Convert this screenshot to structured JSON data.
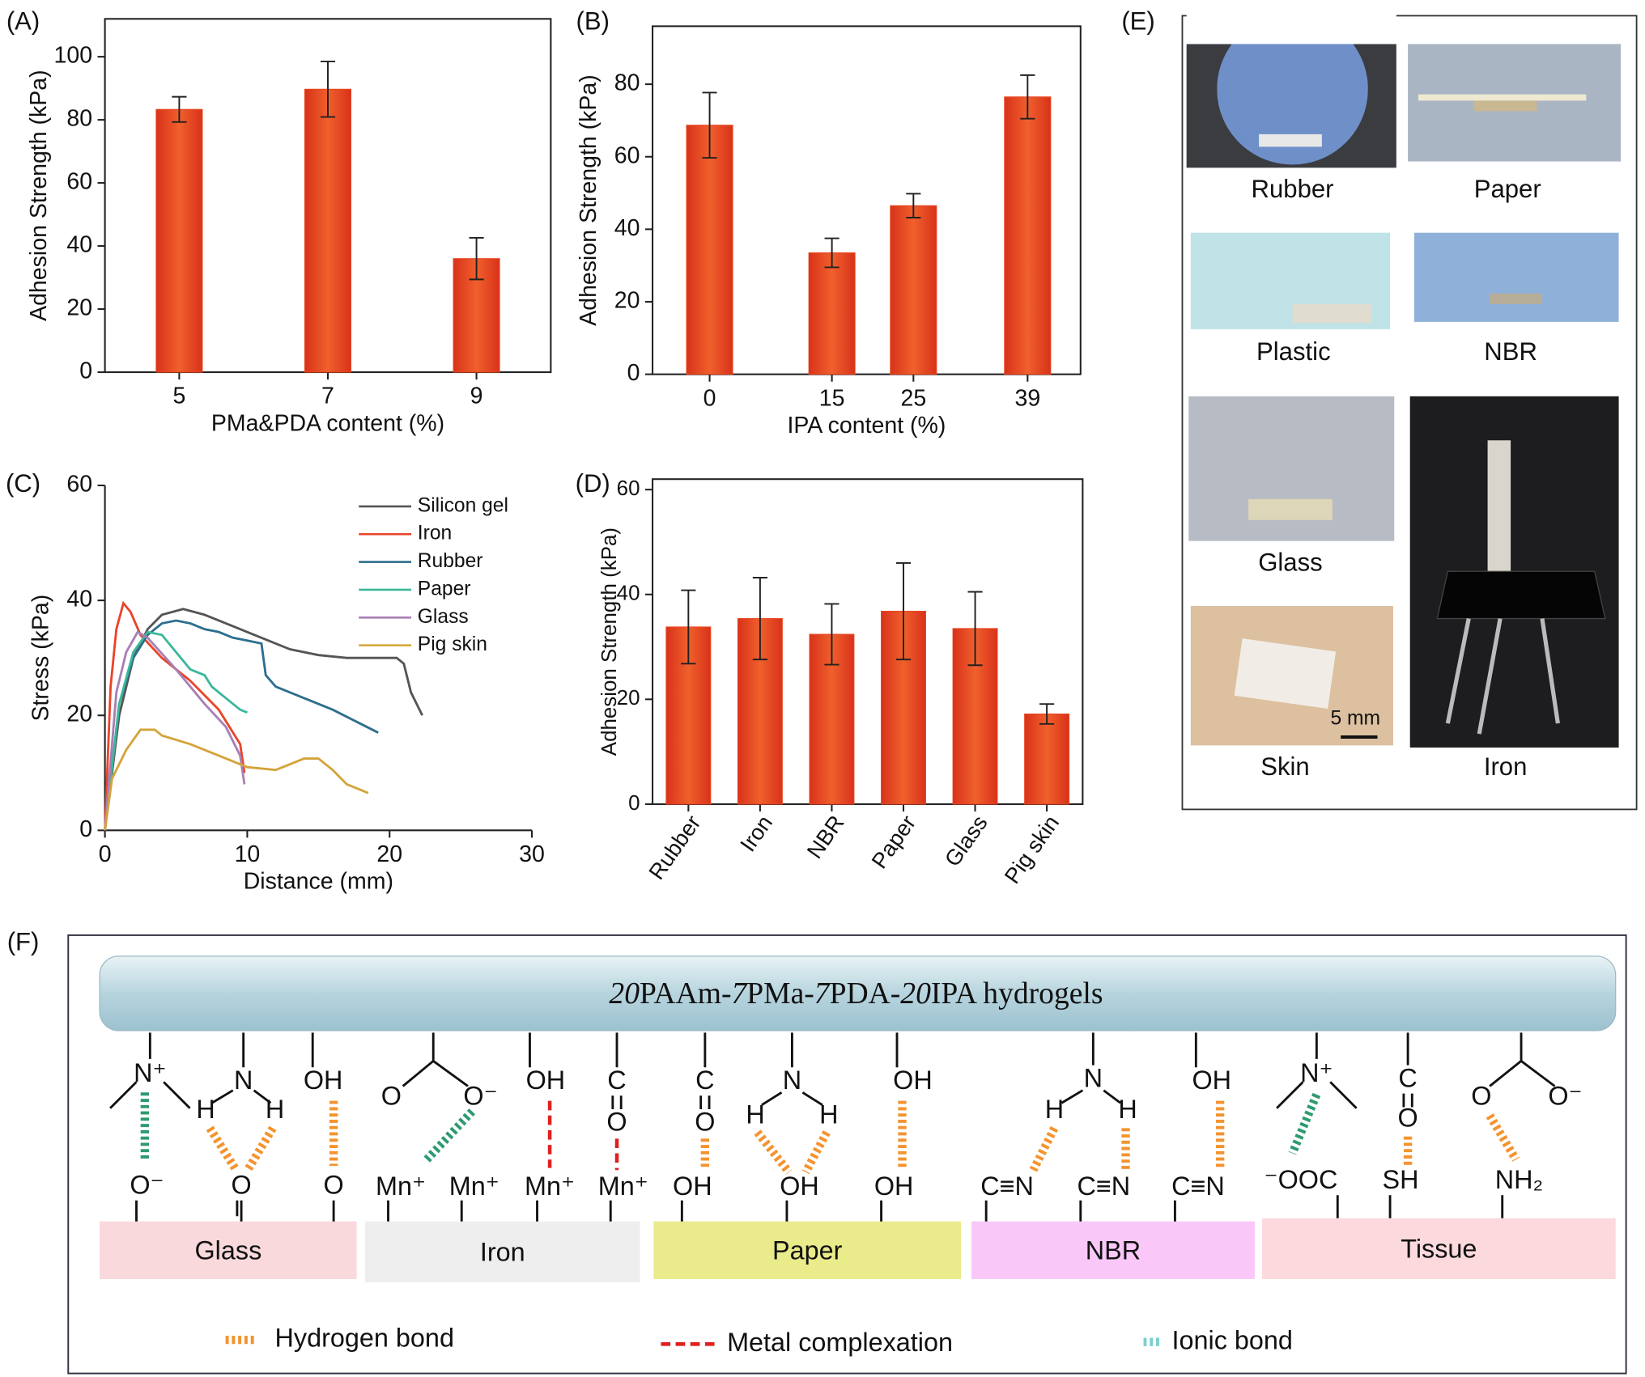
{
  "chart_data": [
    {
      "type": "bar",
      "panel_label": "(A)",
      "xlabel": "PMa&PDA content (%)",
      "ylabel": "Adhesion Strength (kPa)",
      "categories": [
        "5",
        "7",
        "9"
      ],
      "values": [
        83.3,
        89.7,
        36
      ],
      "errors": [
        4,
        8.8,
        6.6
      ],
      "color": "#e8451f",
      "ylim": [
        0,
        112
      ],
      "yticks": [
        0,
        20,
        40,
        60,
        80,
        100
      ],
      "box": true
    },
    {
      "type": "bar",
      "panel_label": "(B)",
      "xlabel": "IPA content (%)",
      "ylabel": "Adhesion Strength (kPa)",
      "x": [
        0,
        15,
        25,
        39
      ],
      "values": [
        68.7,
        33.5,
        46.5,
        76.5
      ],
      "errors": [
        9,
        4,
        3.3,
        6
      ],
      "color": "#e8451f",
      "xlim": [
        -7,
        45.5
      ],
      "xticks": [
        0,
        15,
        25,
        39
      ],
      "ylim": [
        0,
        96
      ],
      "yticks": [
        0,
        20,
        40,
        60,
        80
      ],
      "box": true
    },
    {
      "type": "line",
      "panel_label": "(C)",
      "xlabel": "Distance (mm)",
      "ylabel": "Stress (kPa)",
      "xlim": [
        0,
        30
      ],
      "xticks": [
        0,
        10,
        20,
        30
      ],
      "ylim": [
        0,
        60
      ],
      "yticks": [
        0,
        20,
        40,
        60
      ],
      "box": false,
      "legend": "upper right",
      "series": [
        {
          "name": "Silicon gel",
          "color": "#555555",
          "x": [
            0,
            1,
            2,
            3,
            4,
            5.5,
            7,
            9,
            11,
            13,
            15,
            17,
            19,
            20.5,
            21,
            21.5,
            22.3
          ],
          "values": [
            0,
            20,
            30,
            35,
            37.5,
            38.5,
            37.5,
            35.5,
            33.5,
            31.5,
            30.5,
            30,
            30,
            30,
            29,
            24,
            20
          ]
        },
        {
          "name": "Iron",
          "color": "#e8452a",
          "x": [
            0,
            0.4,
            0.8,
            1.3,
            1.8,
            2.5,
            4,
            6,
            8,
            9.5,
            9.8
          ],
          "values": [
            0,
            25,
            35,
            39.5,
            38,
            34,
            30,
            26,
            21,
            15,
            10
          ]
        },
        {
          "name": "Rubber",
          "color": "#2d6e8e",
          "x": [
            0,
            1,
            2,
            3,
            4,
            5,
            6,
            7,
            8,
            9,
            10,
            11,
            11.3,
            12,
            14,
            16,
            18,
            19.2
          ],
          "values": [
            0,
            22,
            30,
            34,
            36,
            36.5,
            36,
            35,
            34.5,
            33.5,
            33,
            32.5,
            27,
            25,
            23,
            21,
            18.5,
            17
          ]
        },
        {
          "name": "Paper",
          "color": "#3bb89a",
          "x": [
            0,
            1,
            2,
            3,
            4,
            5,
            6,
            7,
            7.5,
            8.5,
            9.5,
            10
          ],
          "values": [
            0,
            22,
            31,
            34.5,
            34,
            31,
            28,
            27,
            25,
            23,
            21,
            20.5
          ]
        },
        {
          "name": "Glass",
          "color": "#a87fb5",
          "x": [
            0,
            0.8,
            1.5,
            2.3,
            3,
            5,
            7,
            8.5,
            9.5,
            9.8
          ],
          "values": [
            0,
            24,
            31,
            34.5,
            33.5,
            28,
            22,
            18,
            13,
            8
          ]
        },
        {
          "name": "Pig skin",
          "color": "#d4a43a",
          "x": [
            0,
            0.5,
            1.5,
            2.5,
            3.5,
            4,
            6,
            8,
            10,
            12,
            14,
            15,
            16,
            17,
            18.5
          ],
          "values": [
            0,
            9,
            14,
            17.5,
            17.5,
            16.5,
            15,
            13,
            11,
            10.5,
            12.5,
            12.5,
            10.5,
            8,
            6.5
          ]
        }
      ]
    },
    {
      "type": "bar",
      "panel_label": "(D)",
      "ylabel": "Adhesion Strength (kPa)",
      "categories": [
        "Rubber",
        "Iron",
        "NBR",
        "Paper",
        "Glass",
        "Pig skin"
      ],
      "values": [
        33.8,
        35.4,
        32.4,
        36.8,
        33.5,
        17.2
      ],
      "errors": [
        7,
        7.8,
        5.8,
        9.2,
        7,
        1.9
      ],
      "color": "#e8451f",
      "ylim": [
        0,
        62
      ],
      "yticks": [
        0,
        20,
        40,
        60
      ],
      "box": true,
      "rotate_labels": true
    }
  ],
  "photo_panel": {
    "panel_label": "(E)",
    "captions": [
      "Rubber",
      "Paper",
      "Plastic",
      "NBR",
      "Glass",
      "Skin",
      "Iron"
    ],
    "scale_bar": "5 mm"
  },
  "diagram": {
    "panel_label": "(F)",
    "title": "20PAAm-7PMa-7PDA-20IPA hydrogels",
    "groups": [
      "N⁺",
      "H",
      "N",
      "H",
      "OH",
      "O⁻",
      "O",
      "O",
      "O",
      "O⁻",
      "OH",
      "C",
      "O",
      "Mn⁺",
      "Mn⁺",
      "Mn⁺",
      "Mn⁺",
      "C",
      "O",
      "H",
      "N",
      "H",
      "OH",
      "OH",
      "OH",
      "OH",
      "H",
      "N",
      "H",
      "OH",
      "C≡N",
      "C≡N",
      "C≡N",
      "N⁺",
      "C",
      "O",
      "O",
      "O⁻",
      "⁻OOC",
      "SH",
      "NH₂"
    ],
    "substrates": [
      "Glass",
      "Iron",
      "Paper",
      "NBR",
      "Tissue"
    ],
    "legend": [
      "Hydrogen bond",
      "Metal complexation",
      "Ionic bond"
    ]
  }
}
